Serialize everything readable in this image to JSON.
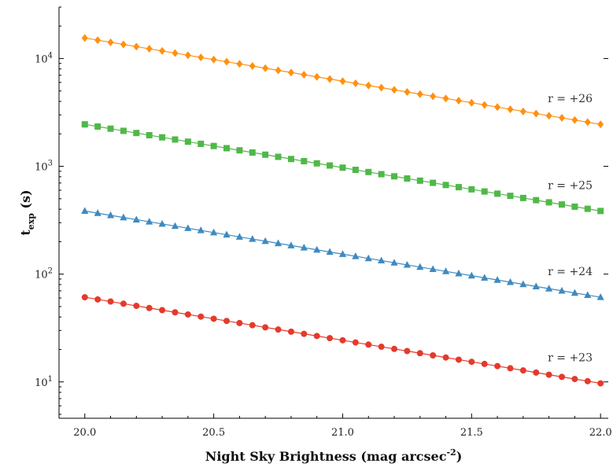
{
  "chart_data": {
    "type": "line",
    "xlabel": "Night Sky Brightness (mag arcsec",
    "xlabel_sup": "-2",
    "xlabel_close": ")",
    "ylabel": "t",
    "ylabel_sub": "exp",
    "ylabel_unit": " (s)",
    "xlim": [
      19.9,
      22.03
    ],
    "ylim": [
      4.6,
      30000
    ],
    "yscale": "log",
    "grid": false,
    "x_ticks": [
      20.0,
      20.5,
      21.0,
      21.5,
      22.0
    ],
    "x_tick_labels": [
      "20.0",
      "20.5",
      "21.0",
      "21.5",
      "22.0"
    ],
    "y_ticks": [
      10,
      100,
      1000,
      10000
    ],
    "y_tick_labels": [
      {
        "base": "10",
        "exp": "1"
      },
      {
        "base": "10",
        "exp": "2"
      },
      {
        "base": "10",
        "exp": "3"
      },
      {
        "base": "10",
        "exp": "4"
      }
    ],
    "x_start": 20.0,
    "x_end": 22.0,
    "n_points": 41,
    "series": [
      {
        "label": "r = +26",
        "y_start": 15500,
        "y_end": 2450,
        "color": "#ff9010",
        "marker": "diamond"
      },
      {
        "label": "r = +25",
        "y_start": 2450,
        "y_end": 385,
        "color": "#50b848",
        "marker": "square"
      },
      {
        "label": "r = +24",
        "y_start": 385,
        "y_end": 61,
        "color": "#3f8ac0",
        "marker": "triangle"
      },
      {
        "label": "r = +23",
        "y_start": 61,
        "y_end": 9.7,
        "color": "#e43a2c",
        "marker": "circle"
      }
    ]
  }
}
